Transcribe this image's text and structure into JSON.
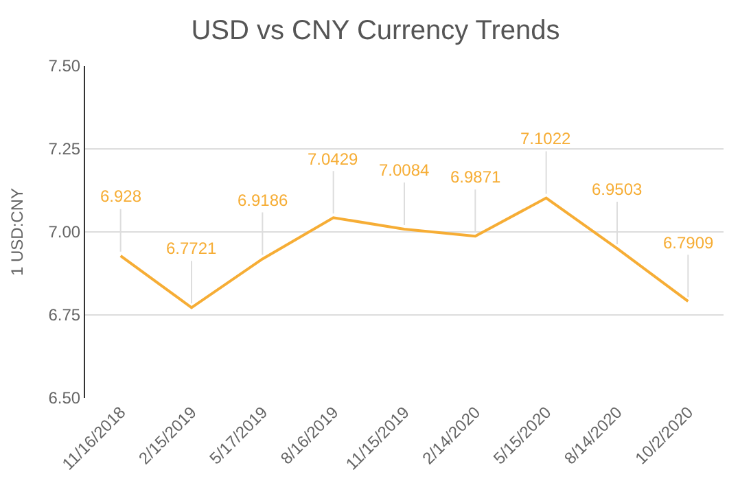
{
  "chart_data": {
    "type": "line",
    "title": "USD vs CNY Currency Trends",
    "ylabel": "1 USD:CNY",
    "categories": [
      "11/16/2018",
      "2/15/2019",
      "5/17/2019",
      "8/16/2019",
      "11/15/2019",
      "2/14/2020",
      "5/15/2020",
      "8/14/2020",
      "10/2/2020"
    ],
    "series": [
      {
        "color": "#f6ad35",
        "values": [
          6.928,
          6.7721,
          6.9186,
          7.0429,
          7.0084,
          6.9871,
          7.1022,
          6.9503,
          6.7909
        ]
      }
    ],
    "ylim": [
      6.5,
      7.5
    ],
    "yticks": [
      {
        "value": 6.5,
        "label": "6.50"
      },
      {
        "value": 6.75,
        "label": "6.75"
      },
      {
        "value": 7.0,
        "label": "7.00"
      },
      {
        "value": 7.25,
        "label": "7.25"
      },
      {
        "value": 7.5,
        "label": "7.50"
      }
    ],
    "grid": "y",
    "data_labels": true,
    "legend": false,
    "marker": "none",
    "line_style": "solid"
  }
}
